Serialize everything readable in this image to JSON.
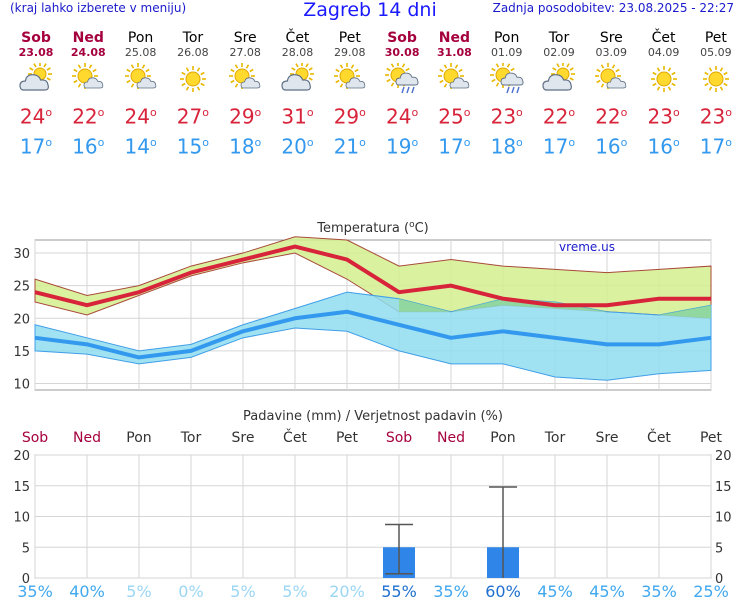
{
  "header": {
    "left_hint": "(kraj lahko izberete v meniju)",
    "title": "Zagreb 14 dni",
    "updated": "Zadnja posodobitev: 23.08.2025 - 22:27"
  },
  "days": [
    {
      "name": "Sob",
      "date": "23.08",
      "weekend": true,
      "icon": "cloud-sun-icon",
      "max": "24",
      "min": "17"
    },
    {
      "name": "Ned",
      "date": "24.08",
      "weekend": true,
      "icon": "sun-cloud-icon",
      "max": "22",
      "min": "16"
    },
    {
      "name": "Pon",
      "date": "25.08",
      "weekend": false,
      "icon": "sun-cloud-icon",
      "max": "24",
      "min": "14"
    },
    {
      "name": "Tor",
      "date": "26.08",
      "weekend": false,
      "icon": "sun-icon",
      "max": "27",
      "min": "15"
    },
    {
      "name": "Sre",
      "date": "27.08",
      "weekend": false,
      "icon": "sun-cloud-icon",
      "max": "29",
      "min": "18"
    },
    {
      "name": "Čet",
      "date": "28.08",
      "weekend": false,
      "icon": "cloud-sun-icon",
      "max": "31",
      "min": "20"
    },
    {
      "name": "Pet",
      "date": "29.08",
      "weekend": false,
      "icon": "sun-cloud-icon",
      "max": "29",
      "min": "21"
    },
    {
      "name": "Sob",
      "date": "30.08",
      "weekend": true,
      "icon": "sun-cloud-rain-icon",
      "max": "24",
      "min": "19"
    },
    {
      "name": "Ned",
      "date": "31.08",
      "weekend": true,
      "icon": "sun-cloud-icon",
      "max": "25",
      "min": "17"
    },
    {
      "name": "Pon",
      "date": "01.09",
      "weekend": false,
      "icon": "sun-cloud-rain-icon",
      "max": "23",
      "min": "18"
    },
    {
      "name": "Tor",
      "date": "02.09",
      "weekend": false,
      "icon": "cloud-sun-icon",
      "max": "22",
      "min": "17"
    },
    {
      "name": "Sre",
      "date": "03.09",
      "weekend": false,
      "icon": "sun-cloud-icon",
      "max": "22",
      "min": "16"
    },
    {
      "name": "Čet",
      "date": "04.09",
      "weekend": false,
      "icon": "sun-icon",
      "max": "23",
      "min": "16"
    },
    {
      "name": "Pet",
      "date": "05.09",
      "weekend": false,
      "icon": "sun-icon",
      "max": "23",
      "min": "17"
    }
  ],
  "degree_symbol": "o",
  "colors": {
    "max": "#d8243a",
    "min": "#3399ee",
    "weekend": "#a5003d",
    "rain_bar": "#2f86e8",
    "band_max": "#d4ee8e",
    "band_min": "#8fdcf0",
    "overlap": "#8fd48f"
  },
  "chart_data": [
    {
      "type": "line",
      "title": "Temperatura (oC)",
      "watermark": "vreme.us",
      "x": [
        0,
        1,
        2,
        3,
        4,
        5,
        6,
        7,
        8,
        9,
        10,
        11,
        12,
        13
      ],
      "ylim": [
        9,
        32
      ],
      "yticks": [
        10,
        15,
        20,
        25,
        30
      ],
      "grid": true,
      "series": [
        {
          "name": "max",
          "values": [
            24,
            22,
            24,
            27,
            29,
            31,
            29,
            24,
            25,
            23,
            22,
            22,
            23,
            23
          ]
        },
        {
          "name": "max_upper",
          "values": [
            26,
            23.5,
            25,
            28,
            30,
            32.5,
            32,
            28,
            29,
            28,
            27.5,
            27,
            27.5,
            28
          ]
        },
        {
          "name": "max_lower",
          "values": [
            22.5,
            20.5,
            23.5,
            26.5,
            28.5,
            30,
            26,
            21,
            21,
            22,
            21.5,
            21,
            20.5,
            20
          ]
        },
        {
          "name": "min",
          "values": [
            17,
            16,
            14,
            15,
            18,
            20,
            21,
            19,
            17,
            18,
            17,
            16,
            16,
            17
          ]
        },
        {
          "name": "min_upper",
          "values": [
            19,
            17,
            15,
            16,
            19,
            21.5,
            24,
            23,
            21,
            23,
            22.5,
            21,
            20.5,
            22
          ]
        },
        {
          "name": "min_lower",
          "values": [
            15,
            14.5,
            13,
            14,
            17,
            18.5,
            18,
            15,
            13,
            13,
            11,
            10.5,
            11.5,
            12
          ]
        }
      ]
    },
    {
      "type": "bar",
      "title": "Padavine (mm) / Verjetnost padavin (%)",
      "categories": [
        "Sob",
        "Ned",
        "Pon",
        "Tor",
        "Sre",
        "Čet",
        "Pet",
        "Sob",
        "Ned",
        "Pon",
        "Tor",
        "Sre",
        "Čet",
        "Pet"
      ],
      "weekend": [
        true,
        true,
        false,
        false,
        false,
        false,
        false,
        true,
        true,
        false,
        false,
        false,
        false,
        false
      ],
      "ylim": [
        0,
        20
      ],
      "yticks": [
        0,
        5,
        10,
        15,
        20
      ],
      "values": [
        0,
        0,
        0,
        0,
        0,
        0,
        0,
        5,
        0,
        5,
        0,
        0,
        0,
        0
      ],
      "err_low": [
        0,
        0,
        0,
        0,
        0,
        0,
        0,
        0.7,
        0,
        0,
        0,
        0,
        0,
        0
      ],
      "err_high": [
        0,
        0,
        0,
        0,
        0,
        0,
        0,
        8.7,
        0,
        14.8,
        0,
        0,
        0,
        0
      ],
      "probability": [
        "35%",
        "40%",
        "5%",
        "0%",
        "5%",
        "5%",
        "20%",
        "55%",
        "35%",
        "60%",
        "45%",
        "45%",
        "35%",
        "25%"
      ]
    }
  ]
}
